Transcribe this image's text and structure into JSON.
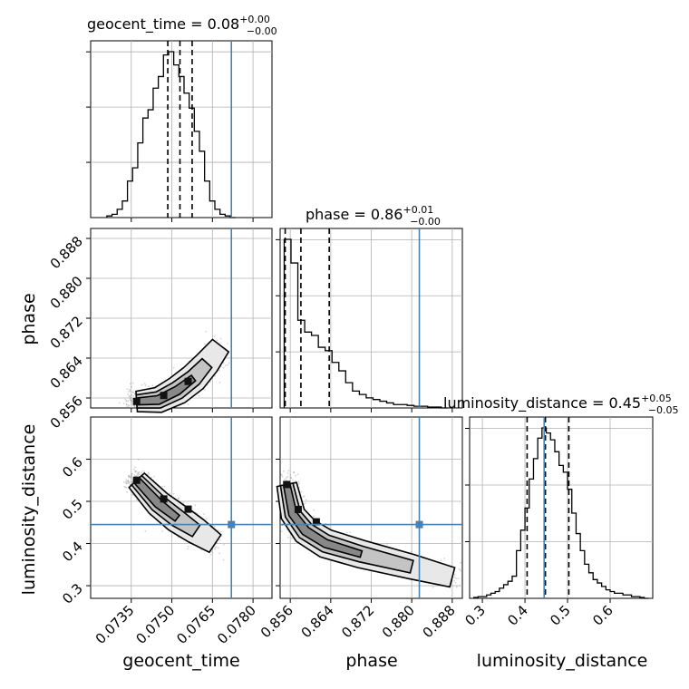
{
  "chart_data": {
    "type": "corner",
    "grid": true,
    "parameters": [
      "geocent_time",
      "phase",
      "luminosity_distance"
    ],
    "axis_labels": {
      "geocent_time": "geocent_time",
      "phase": "phase",
      "luminosity_distance": "luminosity_distance"
    },
    "truth": {
      "geocent_time": 0.0772,
      "phase": 0.8815,
      "luminosity_distance": 0.445
    },
    "titles": [
      {
        "param": "geocent_time",
        "prefix": "geocent_time = ",
        "value": "0.08",
        "upper": "+0.00",
        "lower": "−0.00"
      },
      {
        "param": "phase",
        "prefix": "phase = ",
        "value": "0.86",
        "upper": "+0.01",
        "lower": "−0.00"
      },
      {
        "param": "luminosity_distance",
        "prefix": "luminosity_distance = ",
        "value": "0.45",
        "upper": "+0.05",
        "lower": "−0.05"
      }
    ],
    "ranges": {
      "geocent_time": [
        0.072,
        0.0787
      ],
      "phase": [
        0.854,
        0.89
      ],
      "luminosity_distance": [
        0.27,
        0.7
      ]
    },
    "ticks": {
      "geocent_time": [
        0.0735,
        0.075,
        0.0765,
        0.078
      ],
      "phase": [
        0.856,
        0.864,
        0.872,
        0.88,
        0.888
      ],
      "luminosity_distance": [
        0.3,
        0.4,
        0.5,
        0.6
      ]
    },
    "tick_labels": {
      "geocent_time": [
        "0.0735",
        "0.0750",
        "0.0765",
        "0.0780"
      ],
      "phase": [
        "0.856",
        "0.864",
        "0.872",
        "0.880",
        "0.888"
      ],
      "luminosity_distance": [
        "0.3",
        "0.4",
        "0.5",
        "0.6"
      ],
      "phase_y": [
        "0.856",
        "0.864",
        "0.872",
        "0.880",
        "0.888"
      ],
      "luminosity_distance_y": [
        "0.3",
        "0.4",
        "0.5",
        "0.6"
      ]
    },
    "quantiles": {
      "geocent_time": [
        0.07485,
        0.0753,
        0.07575
      ],
      "phase": [
        0.855,
        0.8581,
        0.8637
      ],
      "luminosity_distance": [
        0.405,
        0.448,
        0.503
      ]
    },
    "histograms": {
      "geocent_time": {
        "edges": [
          0.0726,
          0.07279,
          0.07298,
          0.07317,
          0.07336,
          0.07355,
          0.07374,
          0.07393,
          0.07412,
          0.07431,
          0.0745,
          0.07469,
          0.07488,
          0.07507,
          0.07526,
          0.07545,
          0.07564,
          0.07583,
          0.07602,
          0.07621,
          0.0764,
          0.07659,
          0.07678,
          0.07697,
          0.07716,
          0.07735
        ],
        "counts": [
          0.01,
          0.02,
          0.05,
          0.1,
          0.22,
          0.3,
          0.45,
          0.6,
          0.65,
          0.78,
          0.85,
          0.98,
          1.0,
          0.92,
          0.85,
          0.75,
          0.66,
          0.52,
          0.4,
          0.22,
          0.1,
          0.05,
          0.02,
          0.01,
          0.0
        ]
      },
      "phase": {
        "edges": [
          0.8548,
          0.85615,
          0.8575,
          0.85885,
          0.8602,
          0.86155,
          0.8629,
          0.86425,
          0.8656,
          0.86695,
          0.8683,
          0.86965,
          0.871,
          0.87235,
          0.8737,
          0.87505,
          0.8764,
          0.87775,
          0.8791,
          0.88045,
          0.8818,
          0.88315,
          0.8845,
          0.88585,
          0.8872
        ],
        "counts": [
          1.0,
          0.86,
          0.52,
          0.45,
          0.43,
          0.36,
          0.34,
          0.27,
          0.22,
          0.15,
          0.1,
          0.08,
          0.06,
          0.05,
          0.04,
          0.03,
          0.02,
          0.02,
          0.015,
          0.01,
          0.01,
          0.005,
          0.005,
          0.0
        ]
      },
      "luminosity_distance": {
        "edges": [
          0.28,
          0.29,
          0.3,
          0.31,
          0.32,
          0.33,
          0.34,
          0.35,
          0.36,
          0.37,
          0.38,
          0.39,
          0.4,
          0.41,
          0.42,
          0.43,
          0.44,
          0.45,
          0.46,
          0.47,
          0.48,
          0.49,
          0.5,
          0.51,
          0.52,
          0.53,
          0.54,
          0.55,
          0.56,
          0.57,
          0.58,
          0.59,
          0.6,
          0.61,
          0.62,
          0.63,
          0.64,
          0.65,
          0.66,
          0.67,
          0.68,
          0.69
        ],
        "counts": [
          0.005,
          0.01,
          0.01,
          0.02,
          0.03,
          0.04,
          0.06,
          0.08,
          0.1,
          0.13,
          0.28,
          0.4,
          0.53,
          0.7,
          0.82,
          0.94,
          1.0,
          0.97,
          0.93,
          0.86,
          0.78,
          0.74,
          0.64,
          0.5,
          0.38,
          0.28,
          0.2,
          0.15,
          0.11,
          0.09,
          0.07,
          0.05,
          0.04,
          0.03,
          0.03,
          0.02,
          0.02,
          0.01,
          0.01,
          0.005,
          0.0
        ]
      }
    },
    "contour_ridges": {
      "phase_vs_geocent_time": {
        "x": [
          0.0737,
          0.0745,
          0.0752,
          0.0758,
          0.0763,
          0.0768
        ],
        "y": [
          0.8553,
          0.8556,
          0.8575,
          0.86,
          0.863,
          0.8665
        ]
      },
      "luminosity_distance_vs_geocent_time": {
        "x": [
          0.0737,
          0.0745,
          0.0752,
          0.0759,
          0.0766
        ],
        "y": [
          0.55,
          0.495,
          0.46,
          0.43,
          0.4
        ]
      },
      "luminosity_distance_vs_phase": {
        "x": [
          0.8553,
          0.8565,
          0.859,
          0.863,
          0.87,
          0.88,
          0.888
        ],
        "y": [
          0.54,
          0.47,
          0.43,
          0.4,
          0.375,
          0.345,
          0.32
        ]
      }
    },
    "colors": {
      "truth": "#4682b4",
      "hist": "#000000",
      "grid": "#b0b0b0",
      "points": "#808080"
    }
  }
}
